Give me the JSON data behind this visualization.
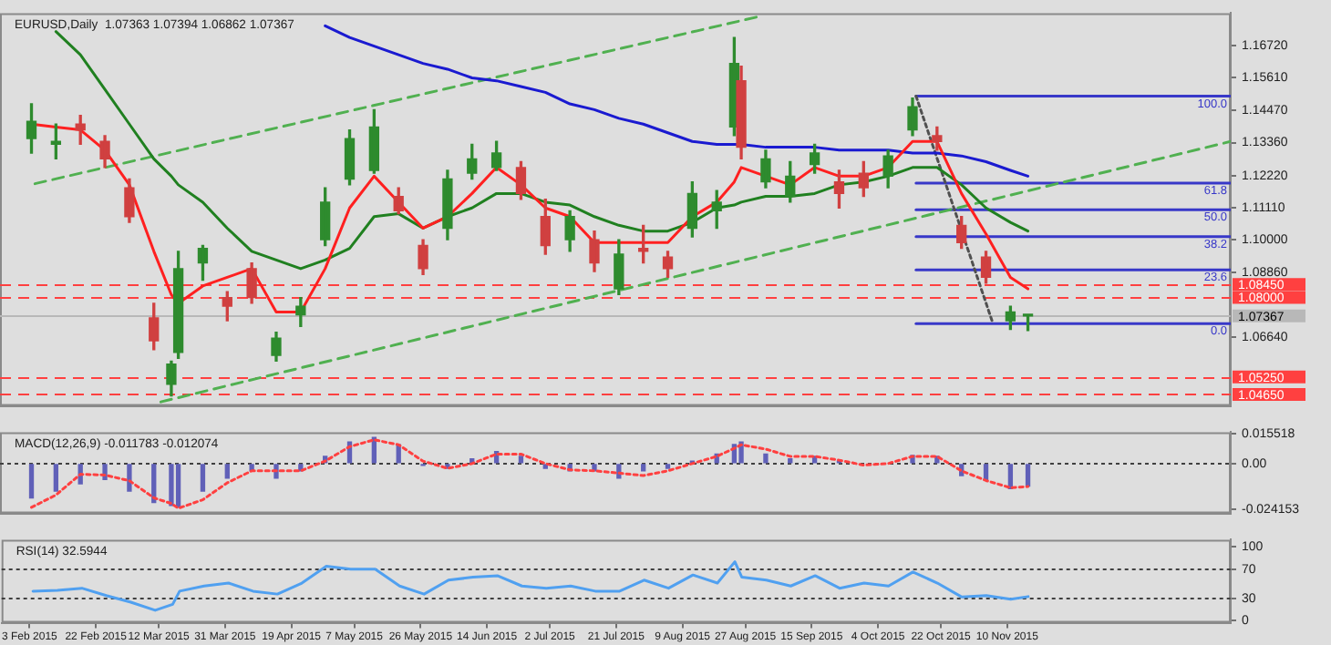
{
  "chart_data": [
    {
      "type": "candlestick",
      "title": "EURUSD,Daily  1.07363 1.07394 1.06862 1.07367",
      "x": [
        "2015-02-04",
        "2015-02-11",
        "2015-02-18",
        "2015-02-25",
        "2015-03-04",
        "2015-03-11",
        "2015-03-16",
        "2015-03-18",
        "2015-03-25",
        "2015-04-01",
        "2015-04-08",
        "2015-04-15",
        "2015-04-22",
        "2015-04-29",
        "2015-05-06",
        "2015-05-13",
        "2015-05-20",
        "2015-05-27",
        "2015-06-03",
        "2015-06-10",
        "2015-06-17",
        "2015-06-24",
        "2015-07-01",
        "2015-07-08",
        "2015-07-15",
        "2015-07-22",
        "2015-07-29",
        "2015-08-05",
        "2015-08-12",
        "2015-08-19",
        "2015-08-24",
        "2015-08-26",
        "2015-09-02",
        "2015-09-09",
        "2015-09-16",
        "2015-09-23",
        "2015-09-30",
        "2015-10-07",
        "2015-10-14",
        "2015-10-21",
        "2015-10-28",
        "2015-11-04",
        "2015-11-11",
        "2015-11-16"
      ],
      "ohlc": [
        [
          1.135,
          1.147,
          1.13,
          1.141
        ],
        [
          1.133,
          1.14,
          1.128,
          1.134
        ],
        [
          1.14,
          1.143,
          1.133,
          1.138
        ],
        [
          1.134,
          1.136,
          1.125,
          1.128
        ],
        [
          1.118,
          1.121,
          1.106,
          1.108
        ],
        [
          1.073,
          1.078,
          1.062,
          1.065
        ],
        [
          1.05,
          1.058,
          1.046,
          1.057
        ],
        [
          1.061,
          1.096,
          1.059,
          1.09
        ],
        [
          1.092,
          1.098,
          1.086,
          1.097
        ],
        [
          1.08,
          1.082,
          1.072,
          1.077
        ],
        [
          1.09,
          1.092,
          1.078,
          1.08
        ],
        [
          1.06,
          1.068,
          1.058,
          1.066
        ],
        [
          1.074,
          1.08,
          1.07,
          1.077
        ],
        [
          1.1,
          1.118,
          1.098,
          1.113
        ],
        [
          1.121,
          1.138,
          1.119,
          1.135
        ],
        [
          1.124,
          1.145,
          1.123,
          1.139
        ],
        [
          1.115,
          1.118,
          1.109,
          1.11
        ],
        [
          1.098,
          1.1,
          1.088,
          1.09
        ],
        [
          1.104,
          1.124,
          1.1,
          1.121
        ],
        [
          1.123,
          1.133,
          1.121,
          1.128
        ],
        [
          1.125,
          1.134,
          1.124,
          1.13
        ],
        [
          1.125,
          1.127,
          1.114,
          1.116
        ],
        [
          1.108,
          1.114,
          1.095,
          1.098
        ],
        [
          1.1,
          1.11,
          1.096,
          1.108
        ],
        [
          1.1,
          1.103,
          1.089,
          1.092
        ],
        [
          1.083,
          1.1,
          1.081,
          1.095
        ],
        [
          1.097,
          1.105,
          1.092,
          1.096
        ],
        [
          1.094,
          1.096,
          1.087,
          1.09
        ],
        [
          1.104,
          1.12,
          1.101,
          1.116
        ],
        [
          1.11,
          1.117,
          1.104,
          1.113
        ],
        [
          1.139,
          1.17,
          1.136,
          1.161
        ],
        [
          1.155,
          1.16,
          1.128,
          1.132
        ],
        [
          1.12,
          1.131,
          1.118,
          1.128
        ],
        [
          1.115,
          1.127,
          1.113,
          1.122
        ],
        [
          1.126,
          1.133,
          1.123,
          1.13
        ],
        [
          1.12,
          1.124,
          1.111,
          1.116
        ],
        [
          1.123,
          1.127,
          1.115,
          1.118
        ],
        [
          1.122,
          1.131,
          1.118,
          1.129
        ],
        [
          1.138,
          1.149,
          1.136,
          1.146
        ],
        [
          1.136,
          1.139,
          1.131,
          1.134
        ],
        [
          1.105,
          1.108,
          1.097,
          1.099
        ],
        [
          1.094,
          1.096,
          1.085,
          1.087
        ],
        [
          1.072,
          1.077,
          1.069,
          1.075
        ],
        [
          1.07363,
          1.07394,
          1.06862,
          1.07367
        ]
      ],
      "colors": [
        "#2e8b2e",
        "#2e8b2e",
        "#d04040",
        "#d04040",
        "#d04040",
        "#d04040",
        "#2e8b2e",
        "#2e8b2e",
        "#2e8b2e",
        "#d04040",
        "#d04040",
        "#2e8b2e",
        "#2e8b2e",
        "#2e8b2e",
        "#2e8b2e",
        "#2e8b2e",
        "#d04040",
        "#d04040",
        "#2e8b2e",
        "#2e8b2e",
        "#2e8b2e",
        "#d04040",
        "#d04040",
        "#2e8b2e",
        "#d04040",
        "#2e8b2e",
        "#d04040",
        "#d04040",
        "#2e8b2e",
        "#2e8b2e",
        "#2e8b2e",
        "#d04040",
        "#2e8b2e",
        "#2e8b2e",
        "#2e8b2e",
        "#d04040",
        "#d04040",
        "#2e8b2e",
        "#2e8b2e",
        "#d04040",
        "#d04040",
        "#d04040",
        "#2e8b2e",
        "#2e8b2e"
      ],
      "series": [
        {
          "type": "line",
          "color": "#ff2020",
          "values": [
            1.14,
            1.139,
            1.138,
            1.131,
            1.119,
            1.096,
            1.081,
            1.078,
            1.084,
            1.087,
            1.09,
            1.075,
            1.075,
            1.09,
            1.111,
            1.122,
            1.113,
            1.104,
            1.108,
            1.116,
            1.125,
            1.119,
            1.111,
            1.108,
            1.099,
            1.099,
            1.099,
            1.099,
            1.108,
            1.113,
            1.12,
            1.125,
            1.122,
            1.119,
            1.125,
            1.122,
            1.122,
            1.125,
            1.134,
            1.134,
            1.116,
            1.102,
            1.087,
            1.083
          ]
        },
        {
          "type": "line",
          "color": "#208020",
          "values": [
            null,
            1.172,
            1.164,
            1.152,
            1.14,
            1.128,
            1.122,
            1.119,
            1.113,
            1.104,
            1.096,
            1.093,
            1.09,
            1.093,
            1.097,
            1.108,
            1.109,
            1.104,
            1.108,
            1.111,
            1.116,
            1.116,
            1.113,
            1.112,
            1.108,
            1.105,
            1.103,
            1.103,
            1.106,
            1.111,
            1.112,
            1.113,
            1.115,
            1.115,
            1.116,
            1.119,
            1.12,
            1.122,
            1.125,
            1.125,
            1.119,
            1.111,
            1.106,
            1.103
          ]
        },
        {
          "type": "line",
          "color": "#1a1ad0",
          "values": [
            null,
            null,
            null,
            null,
            null,
            null,
            null,
            null,
            null,
            null,
            null,
            null,
            null,
            1.174,
            1.17,
            1.167,
            1.164,
            1.161,
            1.159,
            1.156,
            1.155,
            1.153,
            1.151,
            1.147,
            1.145,
            1.142,
            1.14,
            1.137,
            1.134,
            1.133,
            1.133,
            1.133,
            1.132,
            1.132,
            1.132,
            1.131,
            1.131,
            1.131,
            1.13,
            1.13,
            1.129,
            1.127,
            1.124,
            1.122
          ]
        },
        {
          "type": "line",
          "color": "#50b050",
          "line_style": "dashed",
          "x": [
            "2015-02-05",
            "2015-08-31"
          ],
          "values": [
            1.1194,
            1.1772
          ]
        },
        {
          "type": "line",
          "color": "#50b050",
          "line_style": "dashed",
          "x": [
            "2015-03-13",
            "2016-01-13"
          ],
          "values": [
            1.0439,
            1.134
          ]
        },
        {
          "type": "line",
          "color": "#505050",
          "line_style": "dotted",
          "x": [
            "2015-10-15",
            "2015-11-06"
          ],
          "values": [
            1.1497,
            1.071
          ]
        },
        {
          "type": "line",
          "name": "100.0",
          "color": "#3838c8",
          "x": [
            "2015-10-15",
            "2016-01-13"
          ],
          "values": [
            1.1497,
            1.1497
          ]
        },
        {
          "type": "line",
          "name": "61.8",
          "color": "#3838c8",
          "x": [
            "2015-10-15",
            "2016-01-13"
          ],
          "values": [
            1.1196,
            1.1196
          ]
        },
        {
          "type": "line",
          "name": "50.0",
          "color": "#3838c8",
          "x": [
            "2015-10-15",
            "2016-01-13"
          ],
          "values": [
            1.1104,
            1.1104
          ]
        },
        {
          "type": "line",
          "name": "38.2",
          "color": "#3838c8",
          "x": [
            "2015-10-15",
            "2016-01-13"
          ],
          "values": [
            1.1011,
            1.1011
          ]
        },
        {
          "type": "line",
          "name": "23.6",
          "color": "#3838c8",
          "x": [
            "2015-10-15",
            "2016-01-13"
          ],
          "values": [
            1.0896,
            1.0896
          ]
        },
        {
          "type": "line",
          "name": "0.0",
          "color": "#3838c8",
          "x": [
            "2015-10-15",
            "2016-01-13"
          ],
          "values": [
            1.071,
            1.071
          ]
        }
      ],
      "ref_lines": [
        {
          "axis": "y",
          "value": 1.0845,
          "label": "1.08450",
          "color": "#ff4040",
          "line_style": "dashed"
        },
        {
          "axis": "y",
          "value": 1.08,
          "label": "1.08000",
          "color": "#ff4040",
          "line_style": "dashed"
        },
        {
          "axis": "y",
          "value": 1.07367,
          "label": "1.07367",
          "color": "#b8b8b8",
          "line_style": "solid"
        },
        {
          "axis": "y",
          "value": 1.0525,
          "label": "1.05250",
          "color": "#ff4040",
          "line_style": "dashed"
        },
        {
          "axis": "y",
          "value": 1.0465,
          "label": "1.04650",
          "color": "#ff4040",
          "line_style": "dashed"
        }
      ],
      "xlim": [
        "2015-01-26",
        "2016-01-13"
      ],
      "ylim": [
        1.0425,
        1.1784
      ],
      "yticks": [
        {
          "value": 1.1672,
          "label": "1.16720"
        },
        {
          "value": 1.1561,
          "label": "1.15610"
        },
        {
          "value": 1.1447,
          "label": "1.14470"
        },
        {
          "value": 1.1336,
          "label": "1.13360"
        },
        {
          "value": 1.1222,
          "label": "1.12220"
        },
        {
          "value": 1.1111,
          "label": "1.11110"
        },
        {
          "value": 1.1,
          "label": "1.10000"
        },
        {
          "value": 1.0886,
          "label": "1.08860"
        },
        {
          "value": 1.0664,
          "label": "1.06640"
        }
      ],
      "tick_labels": "y"
    },
    {
      "type": "bar",
      "title": "MACD(12,26,9) -0.011783 -0.012074",
      "x": [
        "2015-02-04",
        "2015-02-11",
        "2015-02-18",
        "2015-02-25",
        "2015-03-04",
        "2015-03-11",
        "2015-03-16",
        "2015-03-18",
        "2015-03-25",
        "2015-04-01",
        "2015-04-08",
        "2015-04-15",
        "2015-04-22",
        "2015-04-29",
        "2015-05-06",
        "2015-05-13",
        "2015-05-20",
        "2015-05-27",
        "2015-06-03",
        "2015-06-10",
        "2015-06-17",
        "2015-06-24",
        "2015-07-01",
        "2015-07-08",
        "2015-07-15",
        "2015-07-22",
        "2015-07-29",
        "2015-08-05",
        "2015-08-12",
        "2015-08-19",
        "2015-08-24",
        "2015-08-26",
        "2015-09-02",
        "2015-09-09",
        "2015-09-16",
        "2015-09-23",
        "2015-09-30",
        "2015-10-07",
        "2015-10-14",
        "2015-10-21",
        "2015-10-28",
        "2015-11-04",
        "2015-11-11",
        "2015-11-16"
      ],
      "series": [
        {
          "color": "#6060b8",
          "values": [
            -0.018,
            -0.0145,
            -0.0106,
            -0.0084,
            -0.0145,
            -0.0205,
            -0.022,
            -0.023,
            -0.0145,
            -0.0076,
            -0.0038,
            -0.0076,
            -0.0038,
            0.0038,
            0.0114,
            0.0137,
            0.0099,
            -0.001,
            -0.0025,
            0.0025,
            0.0063,
            0.0038,
            -0.0025,
            -0.0038,
            -0.0038,
            -0.0076,
            -0.0038,
            -0.0025,
            0.0013,
            0.005,
            0.01,
            0.0114,
            0.005,
            0.0025,
            0.0038,
            0.0013,
            null,
            null,
            0.0043,
            0.0038,
            -0.0063,
            -0.0089,
            -0.0132,
            -0.011783
          ]
        },
        {
          "type": "line",
          "color": "#ff4040",
          "line_style": "dotted",
          "values": [
            -0.023,
            -0.0165,
            -0.0056,
            -0.006,
            -0.009,
            -0.018,
            -0.021,
            -0.0235,
            -0.019,
            -0.0101,
            -0.0038,
            -0.0038,
            -0.0038,
            0.0013,
            0.0089,
            0.0125,
            0.0099,
            0.0013,
            -0.0025,
            0,
            0.005,
            0.005,
            0,
            -0.0033,
            -0.0038,
            -0.005,
            -0.0063,
            -0.0038,
            0,
            0.0038,
            0.008,
            0.0099,
            0.0076,
            0.0038,
            0.0038,
            0.0018,
            -0.0008,
            0,
            0.0038,
            0.0038,
            -0.0038,
            -0.0089,
            -0.0127,
            -0.012074
          ]
        }
      ],
      "ref_lines": [
        {
          "axis": "y",
          "value": 0,
          "color": "#404040",
          "line_style": "dotted"
        }
      ],
      "xlim": [
        "2015-01-26",
        "2016-01-13"
      ],
      "ylim": [
        -0.0262,
        0.0165
      ],
      "yticks": [
        {
          "value": 0.015518,
          "label": "0.015518"
        },
        {
          "value": 0,
          "label": "0.00"
        },
        {
          "value": -0.024153,
          "label": "-0.024153"
        }
      ],
      "tick_labels": "y"
    },
    {
      "type": "line",
      "title": "RSI(14) 32.5944",
      "color": "#50a0f0",
      "x": [
        "2015-02-04",
        "2015-02-11",
        "2015-02-18",
        "2015-02-25",
        "2015-03-04",
        "2015-03-11",
        "2015-03-16",
        "2015-03-18",
        "2015-03-25",
        "2015-04-01",
        "2015-04-08",
        "2015-04-15",
        "2015-04-22",
        "2015-04-29",
        "2015-05-06",
        "2015-05-13",
        "2015-05-20",
        "2015-05-27",
        "2015-06-03",
        "2015-06-10",
        "2015-06-17",
        "2015-06-24",
        "2015-07-01",
        "2015-07-08",
        "2015-07-15",
        "2015-07-22",
        "2015-07-29",
        "2015-08-05",
        "2015-08-12",
        "2015-08-19",
        "2015-08-24",
        "2015-08-26",
        "2015-09-02",
        "2015-09-09",
        "2015-09-16",
        "2015-09-23",
        "2015-09-30",
        "2015-10-07",
        "2015-10-14",
        "2015-10-21",
        "2015-10-28",
        "2015-11-04",
        "2015-11-11",
        "2015-11-16"
      ],
      "values": [
        40,
        41,
        44,
        34,
        25,
        14,
        22,
        40,
        47,
        51,
        40,
        36,
        51,
        74,
        70,
        70,
        47,
        36,
        55,
        59,
        61,
        47,
        44,
        47,
        40,
        40,
        55,
        44,
        62,
        51,
        80,
        59,
        55,
        47,
        61,
        44,
        51,
        47,
        66,
        51,
        32,
        34,
        29,
        32.5944
      ],
      "ref_lines": [
        {
          "axis": "y",
          "value": 70,
          "color": "#404040",
          "line_style": "dotted"
        },
        {
          "axis": "y",
          "value": 30,
          "color": "#404040",
          "line_style": "dotted"
        }
      ],
      "xlim": [
        "2015-01-26",
        "2016-01-13"
      ],
      "xticks": [
        {
          "value": "2015-02-03",
          "label": "3 Feb 2015"
        },
        {
          "value": "2015-02-22",
          "label": "22 Feb 2015"
        },
        {
          "value": "2015-03-12",
          "label": "12 Mar 2015"
        },
        {
          "value": "2015-03-31",
          "label": "31 Mar 2015"
        },
        {
          "value": "2015-04-19",
          "label": "19 Apr 2015"
        },
        {
          "value": "2015-05-07",
          "label": "7 May 2015"
        },
        {
          "value": "2015-05-26",
          "label": "26 May 2015"
        },
        {
          "value": "2015-06-14",
          "label": "14 Jun 2015"
        },
        {
          "value": "2015-07-02",
          "label": "2 Jul 2015"
        },
        {
          "value": "2015-07-21",
          "label": "21 Jul 2015"
        },
        {
          "value": "2015-08-09",
          "label": "9 Aug 2015"
        },
        {
          "value": "2015-08-27",
          "label": "27 Aug 2015"
        },
        {
          "value": "2015-09-15",
          "label": "15 Sep 2015"
        },
        {
          "value": "2015-10-04",
          "label": "4 Oct 2015"
        },
        {
          "value": "2015-10-22",
          "label": "22 Oct 2015"
        },
        {
          "value": "2015-11-10",
          "label": "10 Nov 2015"
        }
      ],
      "ylim": [
        -3,
        110
      ],
      "yticks": [
        0,
        30,
        70,
        100
      ]
    }
  ]
}
